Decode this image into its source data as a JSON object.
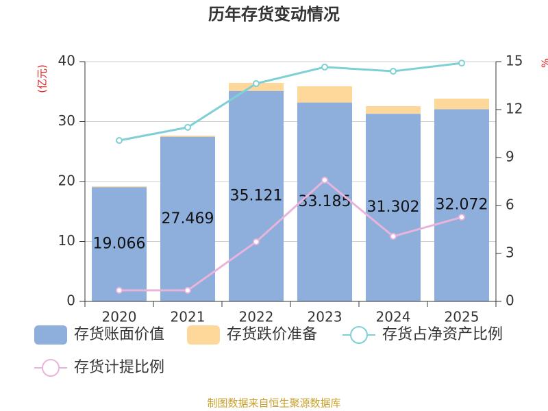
{
  "chart_data": {
    "type": "bar",
    "title": "历年存货变动情况",
    "y_label": "(亿元)",
    "y2_label": "%",
    "categories": [
      "2020",
      "2021",
      "2022",
      "2023",
      "2024",
      "2025"
    ],
    "series": [
      {
        "name": "存货账面价值",
        "type": "bar",
        "color": "#8eaedb",
        "values": [
          19.066,
          27.469,
          35.121,
          33.185,
          31.302,
          32.072
        ]
      },
      {
        "name": "存货跌价准备",
        "type": "bar",
        "color": "#fdd89a",
        "values": [
          0.13,
          0.19,
          1.34,
          2.7,
          1.27,
          1.76
        ]
      },
      {
        "name": "存货占净资产比例",
        "type": "line",
        "axis": "y2",
        "color": "#7fd0d4",
        "values": [
          10.07,
          10.89,
          13.63,
          14.66,
          14.4,
          14.91
        ]
      },
      {
        "name": "存货计提比例",
        "type": "line",
        "axis": "y2",
        "color": "#e8b4dc",
        "values": [
          0.69,
          0.69,
          3.73,
          7.59,
          4.07,
          5.27
        ]
      }
    ],
    "ylim": [
      0,
      40
    ],
    "yticks": [
      0,
      10,
      20,
      30,
      40
    ],
    "y2lim": [
      0,
      15
    ],
    "y2ticks": [
      0,
      3,
      6,
      9,
      12,
      15
    ],
    "grid": true,
    "source": "制图数据来自恒生聚源数据库"
  }
}
